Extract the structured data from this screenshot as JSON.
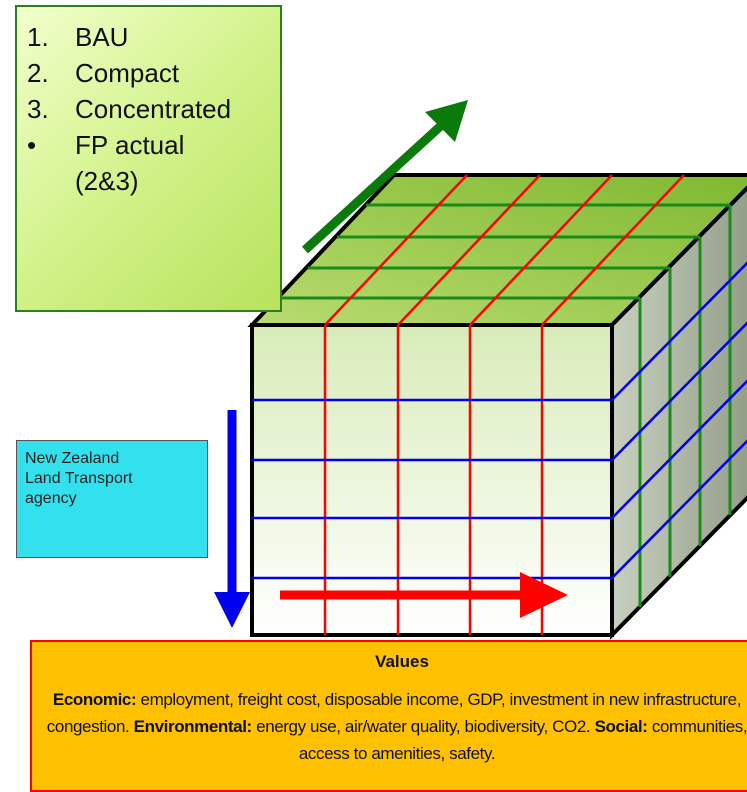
{
  "scenarios": {
    "items": [
      {
        "marker": "1.",
        "text": "BAU"
      },
      {
        "marker": "2.",
        "text": "Compact"
      },
      {
        "marker": "3.",
        "text": "Concentrated"
      },
      {
        "marker": "•",
        "text": "FP actual (2&3)"
      }
    ]
  },
  "agency": {
    "lines": [
      "New Zealand",
      "Land Transport",
      "agency"
    ]
  },
  "values_box": {
    "title": "Values",
    "segments": [
      {
        "label": "Economic:",
        "text": " employment, freight cost, disposable income, GDP, investment in new infrastructure, congestion. "
      },
      {
        "label": "Environmental:",
        "text": " energy use, air/water quality, biodiversity, CO2. "
      },
      {
        "label": "Social:",
        "text": " communities, access to amenities, safety."
      }
    ]
  }
}
